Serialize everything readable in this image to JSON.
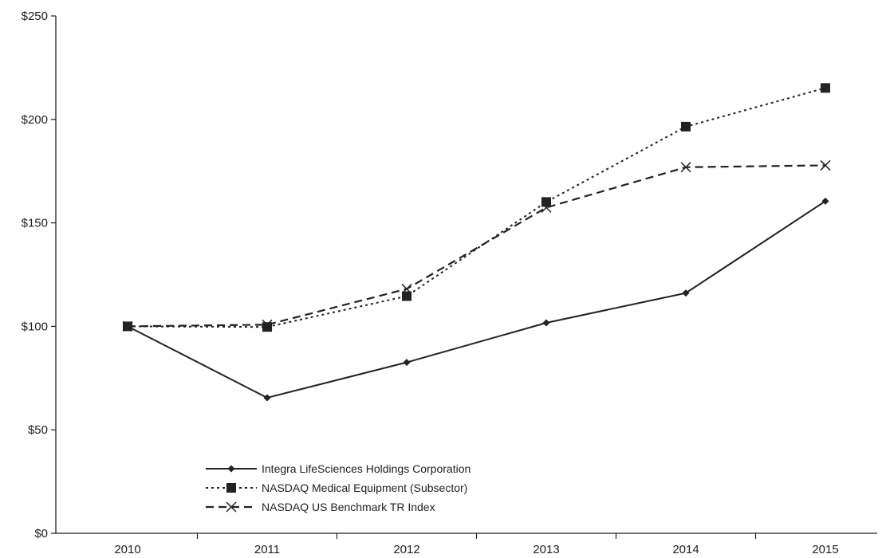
{
  "chart_data": {
    "type": "line",
    "categories": [
      "2010",
      "2011",
      "2012",
      "2013",
      "2014",
      "2015"
    ],
    "ylim": [
      0,
      250
    ],
    "yticks": [
      0,
      50,
      100,
      150,
      200,
      250
    ],
    "ytick_labels": [
      "$0",
      "$50",
      "$100",
      "$150",
      "$200",
      "$250"
    ],
    "grid": false,
    "legend_position": "bottom-left",
    "series": [
      {
        "name": "Integra LifeSciences Holdings Corporation",
        "values": [
          100,
          65.5,
          82.6,
          101.7,
          116.1,
          160.5
        ],
        "line_style": "solid",
        "marker": "diamond",
        "color": "#222222"
      },
      {
        "name": "NASDAQ Medical Equipment (Subsector)",
        "values": [
          100,
          99.7,
          114.6,
          160.1,
          196.5,
          215.2
        ],
        "line_style": "dotted",
        "marker": "square",
        "color": "#222222"
      },
      {
        "name": "NASDAQ US Benchmark TR Index",
        "values": [
          100,
          100.8,
          118.1,
          157.4,
          176.9,
          177.8
        ],
        "line_style": "dashed",
        "marker": "x",
        "color": "#222222"
      }
    ]
  }
}
